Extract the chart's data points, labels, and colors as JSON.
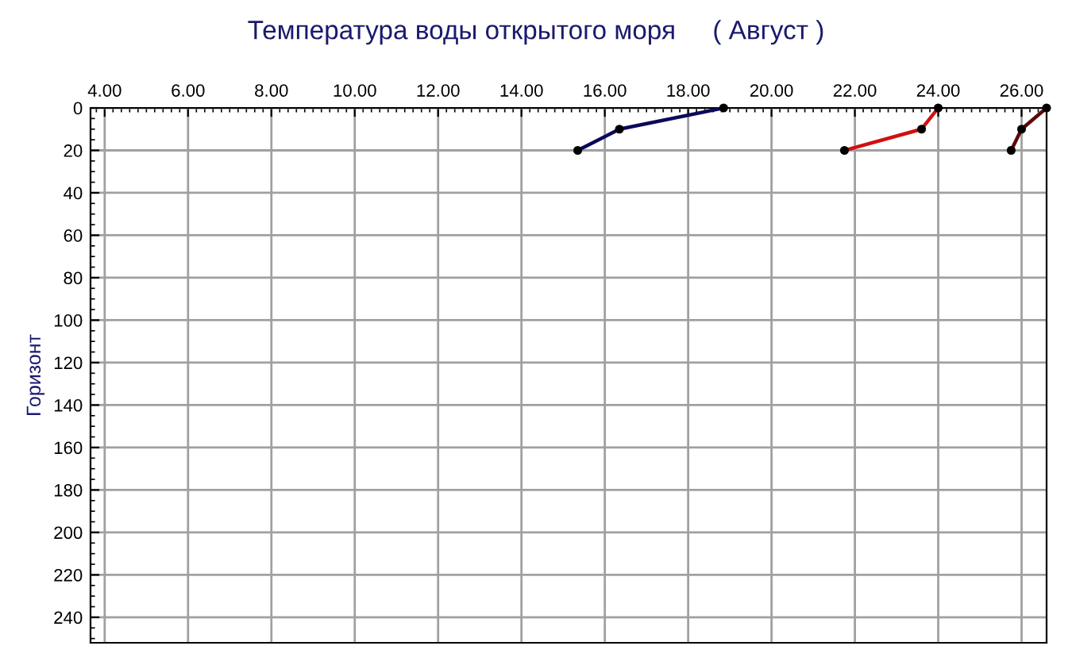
{
  "chart_data": {
    "type": "line",
    "title": "Температура воды открытого моря     ( Август )",
    "ylabel": "Горизонт",
    "series": [
      {
        "color": "#0a0a5a",
        "x": [
          18.85,
          16.35,
          15.35
        ],
        "values": [
          0,
          10,
          20
        ]
      },
      {
        "color": "#d01010",
        "x": [
          24.0,
          23.6,
          21.75
        ],
        "values": [
          0,
          10,
          20
        ]
      },
      {
        "color": "#5a0a0a",
        "x": [
          26.6,
          26.0,
          25.75
        ],
        "values": [
          0,
          10,
          20
        ]
      }
    ],
    "xlim": [
      3.66,
      26.6
    ],
    "xticks": [
      {
        "value": 4,
        "label": "4.00"
      },
      {
        "value": 6,
        "label": "6.00"
      },
      {
        "value": 8,
        "label": "8.00"
      },
      {
        "value": 10,
        "label": "10.00"
      },
      {
        "value": 12,
        "label": "12.00"
      },
      {
        "value": 14,
        "label": "14.00"
      },
      {
        "value": 16,
        "label": "16.00"
      },
      {
        "value": 18,
        "label": "18.00"
      },
      {
        "value": 20,
        "label": "20.00"
      },
      {
        "value": 22,
        "label": "22.00"
      },
      {
        "value": 24,
        "label": "24.00"
      },
      {
        "value": 26,
        "label": "26.00"
      }
    ],
    "ylim": [
      252,
      0
    ],
    "yticks": [
      0,
      20,
      40,
      60,
      80,
      100,
      120,
      140,
      160,
      180,
      200,
      220,
      240
    ],
    "grid": true,
    "marker": "circle",
    "line_style": "solid",
    "legend": false
  }
}
